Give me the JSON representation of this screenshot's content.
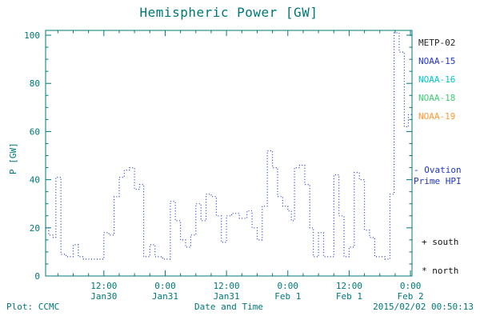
{
  "chart_data": {
    "type": "line",
    "style": "step-dotted",
    "title": "Hemispheric Power [GW]",
    "xlabel": "Date and Time",
    "ylabel": "P [GW]",
    "ylim": [
      0,
      102
    ],
    "xlim_hours": [
      0.6,
      72.3
    ],
    "x_hours_reference": "hours since 2015-01-30 00:00",
    "grid": false,
    "y_ticks": [
      0,
      20,
      40,
      60,
      80,
      100
    ],
    "x_ticks": [
      {
        "hour": 12,
        "time": "12:00",
        "date": "Jan30"
      },
      {
        "hour": 24,
        "time": "0:00",
        "date": "Jan31"
      },
      {
        "hour": 36,
        "time": "12:00",
        "date": "Jan31"
      },
      {
        "hour": 48,
        "time": "0:00",
        "date": "Feb 1"
      },
      {
        "hour": 60,
        "time": "12:00",
        "date": "Feb 1"
      },
      {
        "hour": 72,
        "time": "0:00",
        "date": "Feb 2"
      }
    ],
    "series": [
      {
        "name": "Ovation Prime HPI",
        "color": "#2236c8",
        "x_hours": [
          0.6,
          1.2,
          2.0,
          2.6,
          3.6,
          4.6,
          6.0,
          7.0,
          8.0,
          12.0,
          13.0,
          14.0,
          15.0,
          16.0,
          17.0,
          18.0,
          19.0,
          19.8,
          21.0,
          22.0,
          23.5,
          25.0,
          26.0,
          27.0,
          28.0,
          29.0,
          30.0,
          31.0,
          32.0,
          33.0,
          34.0,
          35.0,
          36.0,
          37.0,
          38.5,
          40.0,
          41.0,
          42.0,
          43.0,
          44.0,
          45.0,
          46.0,
          47.0,
          48.0,
          48.7,
          49.3,
          50.3,
          51.3,
          52.3,
          53.0,
          54.0,
          55.0,
          57.0,
          58.0,
          59.0,
          60.0,
          61.0,
          62.0,
          63.0,
          64.0,
          65.0,
          67.0,
          68.0,
          68.8,
          69.8,
          70.8,
          71.6
        ],
        "values": [
          20,
          17,
          16,
          41,
          9,
          8,
          13,
          8,
          7,
          18,
          17,
          33,
          41,
          44,
          45,
          36,
          38,
          8,
          13,
          8,
          7,
          31,
          23,
          15,
          12,
          17,
          30,
          23,
          34,
          33,
          25,
          14,
          25,
          26,
          24,
          27,
          20,
          15,
          29,
          52,
          45,
          33,
          29,
          27,
          23,
          45,
          46,
          38,
          20,
          8,
          18,
          8,
          42,
          25,
          8,
          12,
          43,
          40,
          19,
          16,
          8,
          7,
          34,
          101,
          93,
          62,
          67
        ]
      }
    ],
    "legend": [
      {
        "label": "METP-02",
        "color": "#222222"
      },
      {
        "label": "NOAA-15",
        "color": "#2236c8"
      },
      {
        "label": "NOAA-16",
        "color": "#00c8c8"
      },
      {
        "label": "NOAA-18",
        "color": "#3fcc77"
      },
      {
        "label": "NOAA-19",
        "color": "#ff9933"
      }
    ],
    "legend_position": "right"
  },
  "annotations": {
    "ovation_line1": "- Ovation",
    "ovation_line2": "Prime HPI",
    "south": "+ south",
    "north": "* north"
  },
  "footer": {
    "plot_source": "Plot: CCMC",
    "timestamp": "2015/02/02 00:50:13"
  },
  "colors": {
    "axis": "#007878",
    "line": "#2236c8"
  }
}
